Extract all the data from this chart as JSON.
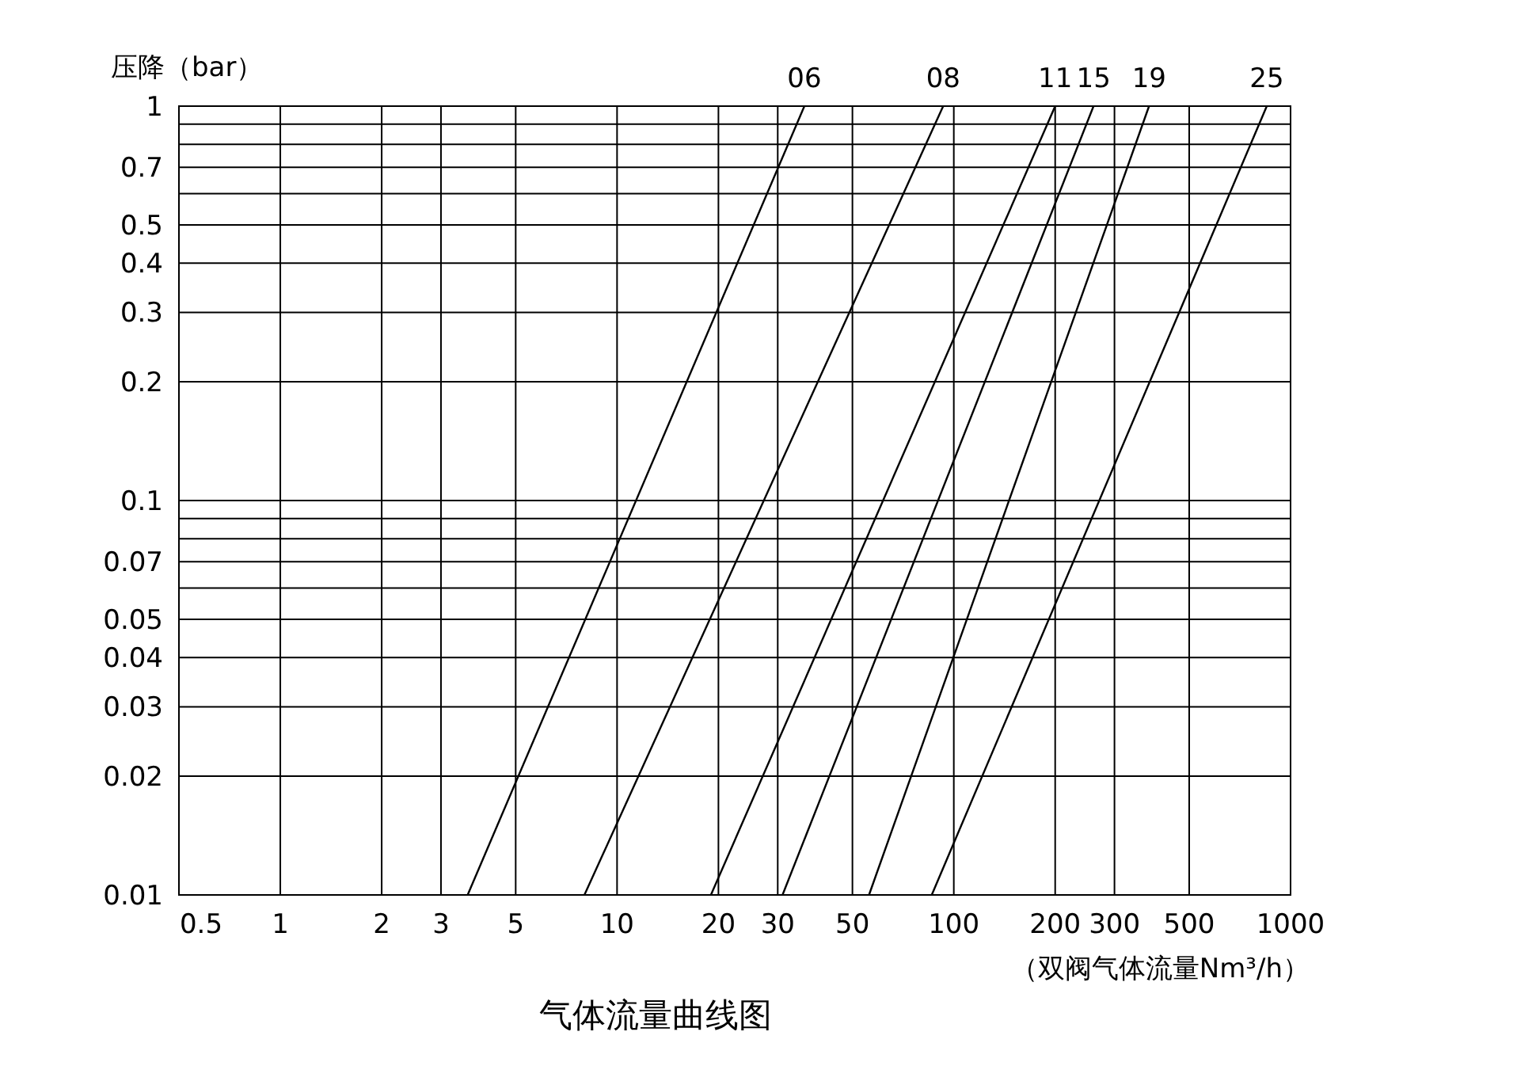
{
  "chart_data": {
    "type": "line",
    "title": "气体流量曲线图",
    "xlabel": "（双阀气体流量Nm³/h）",
    "ylabel": "压降（bar）",
    "log": "xy",
    "grid": true,
    "xlim": [
      0.5,
      1000
    ],
    "xticks": [
      0.5,
      1,
      2,
      3,
      5,
      10,
      20,
      30,
      50,
      100,
      200,
      300,
      500,
      1000
    ],
    "ylim": [
      0.01,
      1
    ],
    "yticks": [
      1,
      {
        "value": 0.9,
        "label": null
      },
      {
        "value": 0.8,
        "label": null
      },
      0.7,
      {
        "value": 0.6,
        "label": null
      },
      0.5,
      0.4,
      0.3,
      0.2,
      0.1,
      {
        "value": 0.09,
        "label": null
      },
      {
        "value": 0.08,
        "label": null
      },
      0.07,
      {
        "value": 0.06,
        "label": null
      },
      0.05,
      0.04,
      0.03,
      0.02,
      0.01
    ],
    "series": [
      {
        "name": "06",
        "color": "#000000",
        "x": [
          3.6,
          36
        ],
        "values": [
          0.01,
          1
        ]
      },
      {
        "name": "08",
        "color": "#000000",
        "x": [
          8,
          93
        ],
        "values": [
          0.01,
          1
        ]
      },
      {
        "name": "11",
        "color": "#000000",
        "x": [
          19,
          200
        ],
        "values": [
          0.01,
          1
        ]
      },
      {
        "name": "15",
        "color": "#000000",
        "x": [
          31,
          260
        ],
        "values": [
          0.01,
          1
        ]
      },
      {
        "name": "19",
        "color": "#000000",
        "x": [
          56,
          380
        ],
        "values": [
          0.01,
          1
        ]
      },
      {
        "name": "25",
        "color": "#000000",
        "x": [
          86,
          850
        ],
        "values": [
          0.01,
          1
        ]
      }
    ]
  }
}
